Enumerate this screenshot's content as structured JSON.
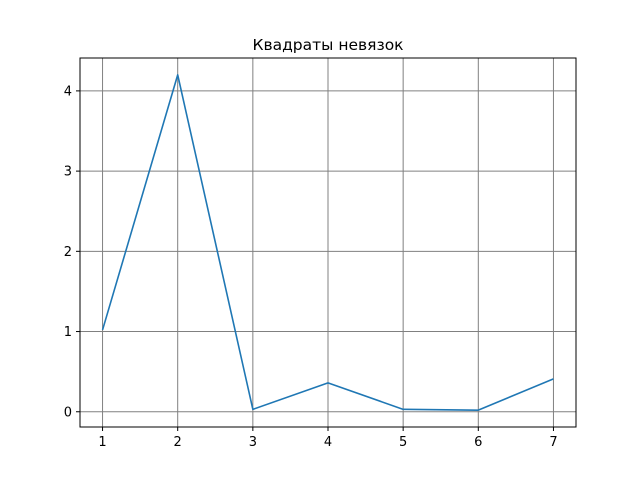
{
  "chart_data": {
    "type": "line",
    "title": "Квадраты невязок",
    "xlabel": "",
    "ylabel": "",
    "x": [
      1,
      2,
      3,
      4,
      5,
      6,
      7
    ],
    "series": [
      {
        "values": [
          1.02,
          4.2,
          0.03,
          0.36,
          0.03,
          0.02,
          0.41
        ],
        "color": "#1f77b4"
      }
    ],
    "xlim": [
      0.7,
      7.3
    ],
    "ylim": [
      -0.19,
      4.41
    ],
    "xticks": [
      1,
      2,
      3,
      4,
      5,
      6,
      7
    ],
    "yticks": [
      0,
      1,
      2,
      3,
      4
    ],
    "grid": true,
    "grid_color": "#808080",
    "legend": "none"
  }
}
